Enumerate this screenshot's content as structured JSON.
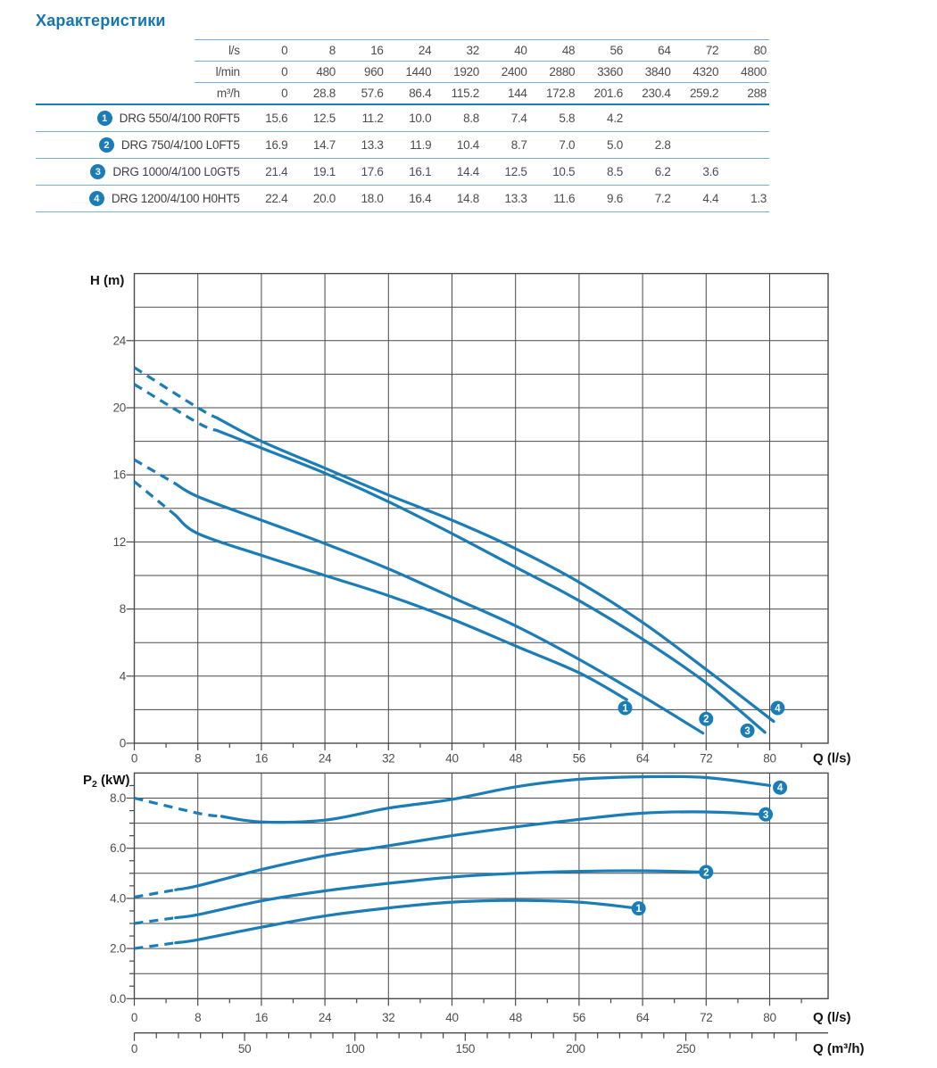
{
  "title": "Характеристики",
  "colors": {
    "accent": "#1a7db8",
    "light_rule": "#6fb0d4",
    "grid": "#4a4a4a",
    "text": "#4d4d4d"
  },
  "table": {
    "unit_rows": [
      {
        "unit": "l/s",
        "values": [
          "0",
          "8",
          "16",
          "24",
          "32",
          "40",
          "48",
          "56",
          "64",
          "72",
          "80"
        ]
      },
      {
        "unit": "l/min",
        "values": [
          "0",
          "480",
          "960",
          "1440",
          "1920",
          "2400",
          "2880",
          "3360",
          "3840",
          "4320",
          "4800"
        ]
      },
      {
        "unit": "m³/h",
        "values": [
          "0",
          "28.8",
          "57.6",
          "86.4",
          "115.2",
          "144",
          "172.8",
          "201.6",
          "230.4",
          "259.2",
          "288"
        ]
      }
    ],
    "rows": [
      {
        "num": "1",
        "model": "DRG 550/4/100 R0FT5",
        "values": [
          "15.6",
          "12.5",
          "11.2",
          "10.0",
          "8.8",
          "7.4",
          "5.8",
          "4.2",
          "",
          "",
          ""
        ]
      },
      {
        "num": "2",
        "model": "DRG 750/4/100 L0FT5",
        "values": [
          "16.9",
          "14.7",
          "13.3",
          "11.9",
          "10.4",
          "8.7",
          "7.0",
          "5.0",
          "2.8",
          "",
          ""
        ]
      },
      {
        "num": "3",
        "model": "DRG 1000/4/100 L0GT5",
        "values": [
          "21.4",
          "19.1",
          "17.6",
          "16.1",
          "14.4",
          "12.5",
          "10.5",
          "8.5",
          "6.2",
          "3.6",
          ""
        ]
      },
      {
        "num": "4",
        "model": "DRG 1200/4/100 H0HT5",
        "values": [
          "22.4",
          "20.0",
          "18.0",
          "16.4",
          "14.8",
          "13.3",
          "11.6",
          "9.6",
          "7.2",
          "4.4",
          "1.3"
        ]
      }
    ]
  },
  "chart_data": [
    {
      "type": "line",
      "id": "head",
      "title": "Head vs flow curves",
      "ylabel": "H (m)",
      "xlabel": "Q (l/s)",
      "xlim": [
        0,
        87.4
      ],
      "ylim": [
        0,
        28
      ],
      "x_grid_step": 8,
      "x_minor_step": 4,
      "y_grid_step": 2,
      "grid": true,
      "x_tick_values": [
        0,
        8,
        16,
        24,
        32,
        40,
        48,
        56,
        64,
        72,
        80
      ],
      "x_tick_labels": [
        "0",
        "8",
        "16",
        "24",
        "32",
        "40",
        "48",
        "56",
        "64",
        "72",
        "80"
      ],
      "y_tick_values": [
        0,
        4,
        8,
        12,
        16,
        20,
        24
      ],
      "y_tick_labels": [
        "0",
        "4",
        "8",
        "12",
        "16",
        "20",
        "24"
      ],
      "series": [
        {
          "name": "1",
          "model": "DRG 550/4/100 R0FT5",
          "dash_until": 5.2,
          "points": [
            [
              0,
              15.6
            ],
            [
              8,
              12.5
            ],
            [
              16,
              11.2
            ],
            [
              24,
              10.0
            ],
            [
              32,
              8.8
            ],
            [
              40,
              7.4
            ],
            [
              48,
              5.8
            ],
            [
              56,
              4.2
            ],
            [
              62,
              2.6
            ]
          ]
        },
        {
          "name": "2",
          "model": "DRG 750/4/100 L0FT5",
          "dash_until": 5.2,
          "points": [
            [
              0,
              16.9
            ],
            [
              8,
              14.7
            ],
            [
              16,
              13.3
            ],
            [
              24,
              11.9
            ],
            [
              32,
              10.4
            ],
            [
              40,
              8.7
            ],
            [
              48,
              7.0
            ],
            [
              56,
              5.0
            ],
            [
              64,
              2.8
            ],
            [
              71.6,
              0.6
            ]
          ]
        },
        {
          "name": "3",
          "model": "DRG 1000/4/100 L0GT5",
          "dash_until": 10.5,
          "points": [
            [
              0,
              21.4
            ],
            [
              8,
              19.1
            ],
            [
              16,
              17.6
            ],
            [
              24,
              16.1
            ],
            [
              32,
              14.4
            ],
            [
              40,
              12.5
            ],
            [
              48,
              10.5
            ],
            [
              56,
              8.5
            ],
            [
              64,
              6.2
            ],
            [
              72,
              3.6
            ],
            [
              79.4,
              0.65
            ]
          ]
        },
        {
          "name": "4",
          "model": "DRG 1200/4/100 H0HT5",
          "dash_until": 10.5,
          "points": [
            [
              0,
              22.4
            ],
            [
              8,
              20.0
            ],
            [
              16,
              18.0
            ],
            [
              24,
              16.4
            ],
            [
              32,
              14.8
            ],
            [
              40,
              13.3
            ],
            [
              48,
              11.6
            ],
            [
              56,
              9.6
            ],
            [
              64,
              7.2
            ],
            [
              72,
              4.4
            ],
            [
              80.5,
              1.3
            ]
          ]
        }
      ],
      "markers": [
        {
          "label": "1",
          "x": 61.8,
          "y": 2.1
        },
        {
          "label": "2",
          "x": 72.0,
          "y": 1.45
        },
        {
          "label": "3",
          "x": 77.2,
          "y": 0.75
        },
        {
          "label": "4",
          "x": 81.0,
          "y": 2.1
        }
      ]
    },
    {
      "type": "line",
      "id": "power",
      "title": "Shaft power vs flow curves",
      "ylabel_parts": {
        "pre": "P",
        "sub": "2",
        "post": " (kW)"
      },
      "xlabel": "Q (l/s)",
      "x2label": "Q (m³/h)",
      "xlim": [
        0,
        87.4
      ],
      "ylim": [
        0,
        9
      ],
      "x_grid_step": 8,
      "x_minor_step": 4,
      "y_grid_step": 1,
      "y_minor_step": 0.5,
      "grid": true,
      "x_tick_values": [
        0,
        8,
        16,
        24,
        32,
        40,
        48,
        56,
        64,
        72,
        80
      ],
      "x_tick_labels": [
        "0",
        "8",
        "16",
        "24",
        "32",
        "40",
        "48",
        "56",
        "64",
        "72",
        "80"
      ],
      "y_tick_values": [
        0,
        2,
        4,
        6,
        8
      ],
      "y_tick_labels": [
        "0.0",
        "2.0",
        "4.0",
        "6.0",
        "8.0"
      ],
      "x2_tick_values": [
        0,
        50,
        100,
        150,
        200,
        250
      ],
      "x2_tick_labels": [
        "0",
        "50",
        "100",
        "150",
        "200",
        "250"
      ],
      "x2_minor_step": 10,
      "x2_max": 300,
      "x2_per_x": 3.6,
      "series": [
        {
          "name": "1",
          "dash_until": 5.2,
          "points": [
            [
              0,
              2.0
            ],
            [
              8,
              2.35
            ],
            [
              16,
              2.85
            ],
            [
              24,
              3.3
            ],
            [
              32,
              3.62
            ],
            [
              40,
              3.85
            ],
            [
              48,
              3.92
            ],
            [
              56,
              3.85
            ],
            [
              63,
              3.62
            ]
          ]
        },
        {
          "name": "2",
          "dash_until": 5.2,
          "points": [
            [
              0,
              3.0
            ],
            [
              8,
              3.35
            ],
            [
              16,
              3.9
            ],
            [
              24,
              4.3
            ],
            [
              32,
              4.6
            ],
            [
              40,
              4.85
            ],
            [
              48,
              5.0
            ],
            [
              56,
              5.08
            ],
            [
              64,
              5.1
            ],
            [
              71.5,
              5.05
            ]
          ]
        },
        {
          "name": "3",
          "dash_until": 5.2,
          "points": [
            [
              0,
              4.05
            ],
            [
              8,
              4.5
            ],
            [
              16,
              5.15
            ],
            [
              24,
              5.7
            ],
            [
              32,
              6.1
            ],
            [
              40,
              6.5
            ],
            [
              48,
              6.85
            ],
            [
              56,
              7.15
            ],
            [
              64,
              7.4
            ],
            [
              72,
              7.45
            ],
            [
              79,
              7.35
            ]
          ]
        },
        {
          "name": "4",
          "dash_until": 11,
          "points": [
            [
              0,
              8.0
            ],
            [
              8,
              7.4
            ],
            [
              16,
              7.05
            ],
            [
              24,
              7.12
            ],
            [
              32,
              7.6
            ],
            [
              40,
              7.95
            ],
            [
              48,
              8.45
            ],
            [
              56,
              8.75
            ],
            [
              64,
              8.85
            ],
            [
              72,
              8.82
            ],
            [
              80,
              8.5
            ]
          ]
        }
      ],
      "markers": [
        {
          "label": "1",
          "x": 63.5,
          "y": 3.6
        },
        {
          "label": "2",
          "x": 72.0,
          "y": 5.05
        },
        {
          "label": "3",
          "x": 79.5,
          "y": 7.35
        },
        {
          "label": "4",
          "x": 81.3,
          "y": 8.42
        }
      ]
    }
  ]
}
